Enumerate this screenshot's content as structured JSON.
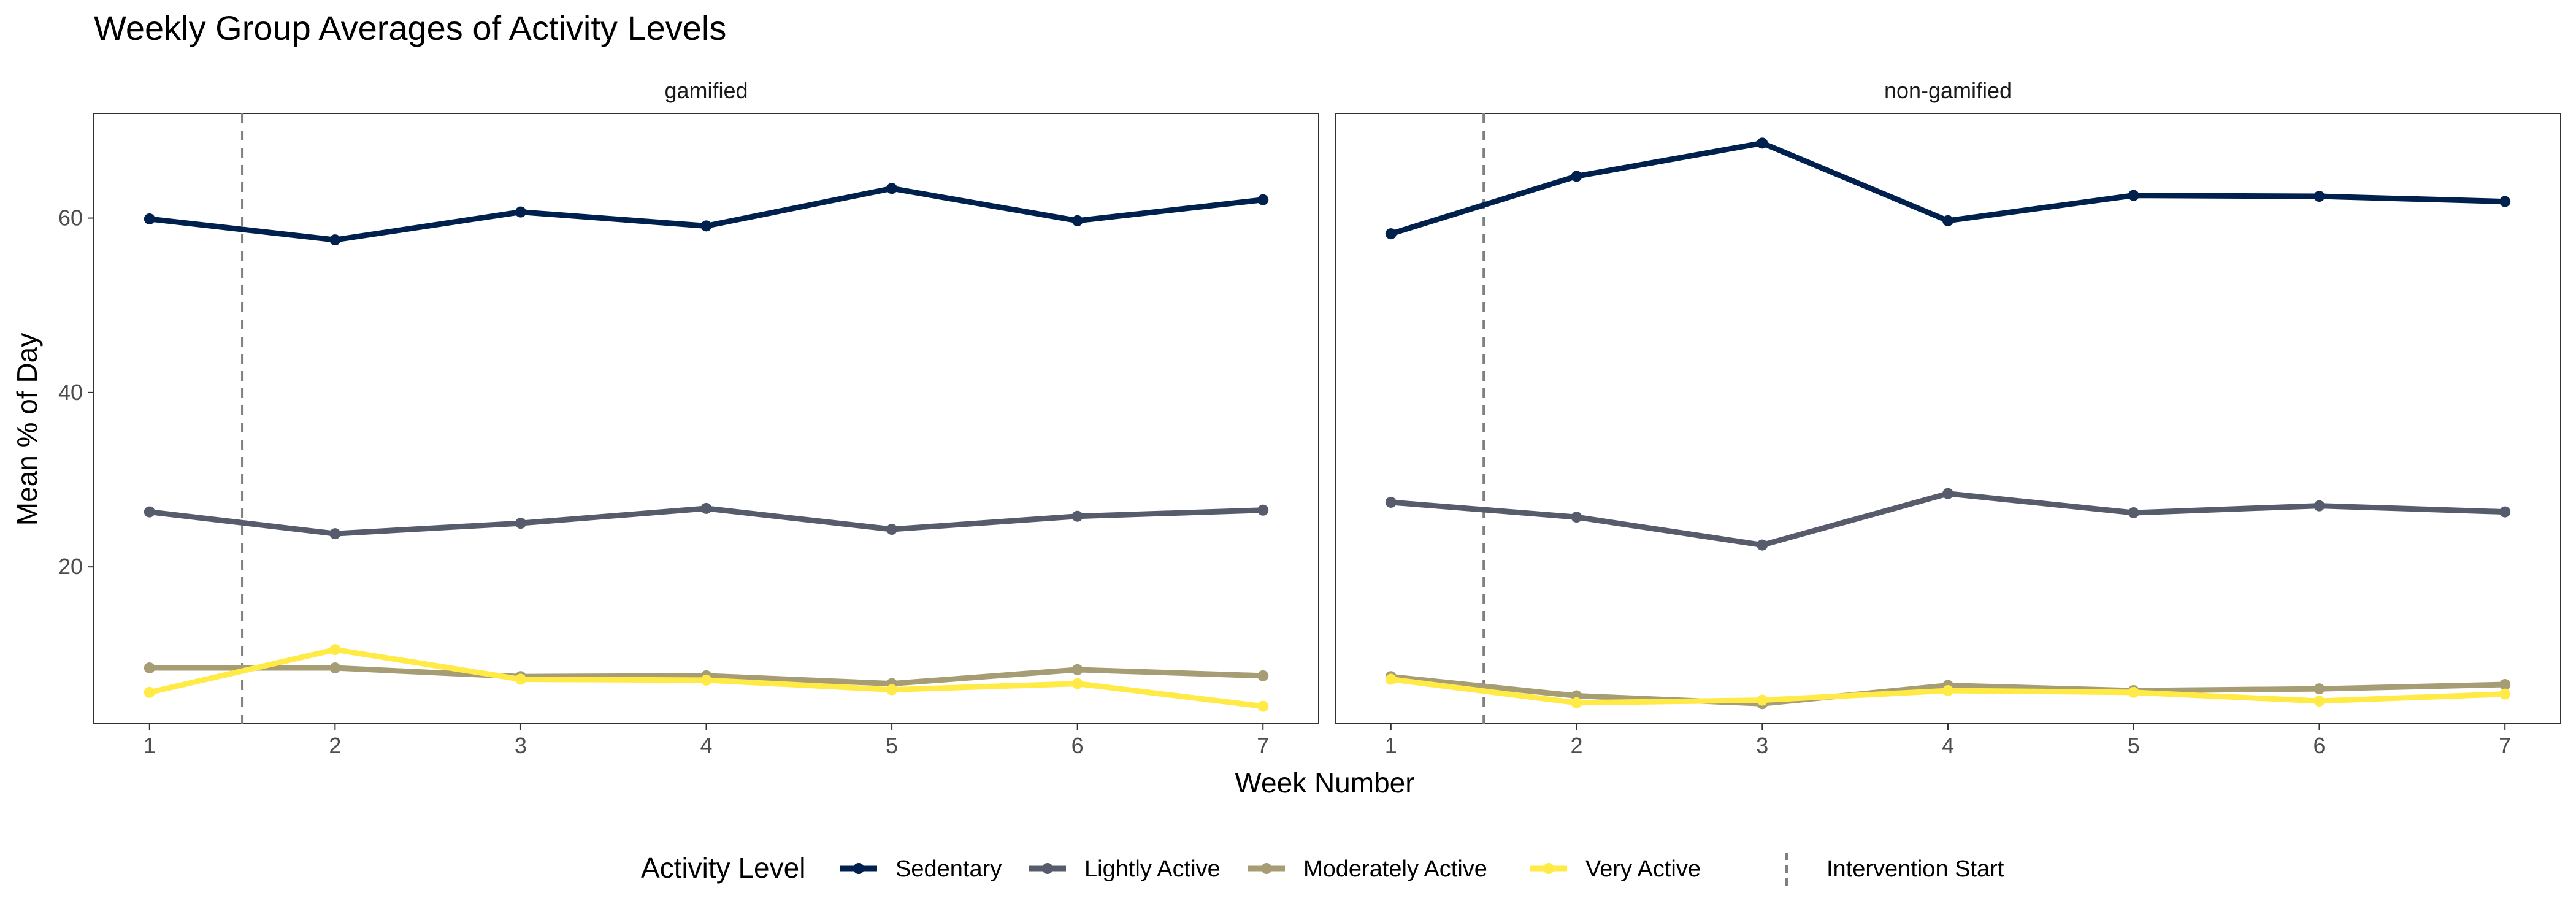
{
  "chart_data": {
    "type": "line",
    "title": "Weekly Group Averages of Activity Levels",
    "xlabel": "Week Number",
    "ylabel": "Mean % of Day",
    "x": [
      1,
      2,
      3,
      4,
      5,
      6,
      7
    ],
    "x_ticks": [
      "1",
      "2",
      "3",
      "4",
      "5",
      "6",
      "7"
    ],
    "y_ticks": [
      "20",
      "40",
      "60"
    ],
    "xlim": [
      0.7,
      7.3
    ],
    "ylim": [
      2,
      72
    ],
    "grid": false,
    "legend": {
      "position": "bottom",
      "title": "Activity Level",
      "entries": [
        "Sedentary",
        "Lightly Active",
        "Moderately Active",
        "Very Active"
      ],
      "reference_label": "Intervention Start"
    },
    "reference_line": {
      "x": 1.5,
      "style": "dashed",
      "color": "#7f7f7f"
    },
    "colors": {
      "Sedentary": "#00204d",
      "Lightly Active": "#575c6d",
      "Moderately Active": "#a69d75",
      "Very Active": "#ffea46"
    },
    "panels": [
      {
        "name": "gamified",
        "series": [
          {
            "name": "Sedentary",
            "values": [
              59.9,
              57.5,
              60.7,
              59.1,
              63.4,
              59.7,
              62.1
            ]
          },
          {
            "name": "Lightly Active",
            "values": [
              26.3,
              23.8,
              25.0,
              26.7,
              24.3,
              25.8,
              26.5
            ]
          },
          {
            "name": "Moderately Active",
            "values": [
              8.4,
              8.4,
              7.4,
              7.5,
              6.6,
              8.2,
              7.5
            ]
          },
          {
            "name": "Very Active",
            "values": [
              5.6,
              10.5,
              7.1,
              7.0,
              5.9,
              6.6,
              4.0
            ]
          }
        ]
      },
      {
        "name": "non-gamified",
        "series": [
          {
            "name": "Sedentary",
            "values": [
              58.2,
              64.8,
              68.6,
              59.7,
              62.6,
              62.5,
              61.9
            ]
          },
          {
            "name": "Lightly Active",
            "values": [
              27.4,
              25.7,
              22.5,
              28.4,
              26.2,
              27.0,
              26.3
            ]
          },
          {
            "name": "Moderately Active",
            "values": [
              7.4,
              5.2,
              4.3,
              6.4,
              5.8,
              6.0,
              6.5
            ]
          },
          {
            "name": "Very Active",
            "values": [
              7.1,
              4.4,
              4.7,
              5.8,
              5.6,
              4.6,
              5.4
            ]
          }
        ]
      }
    ]
  }
}
